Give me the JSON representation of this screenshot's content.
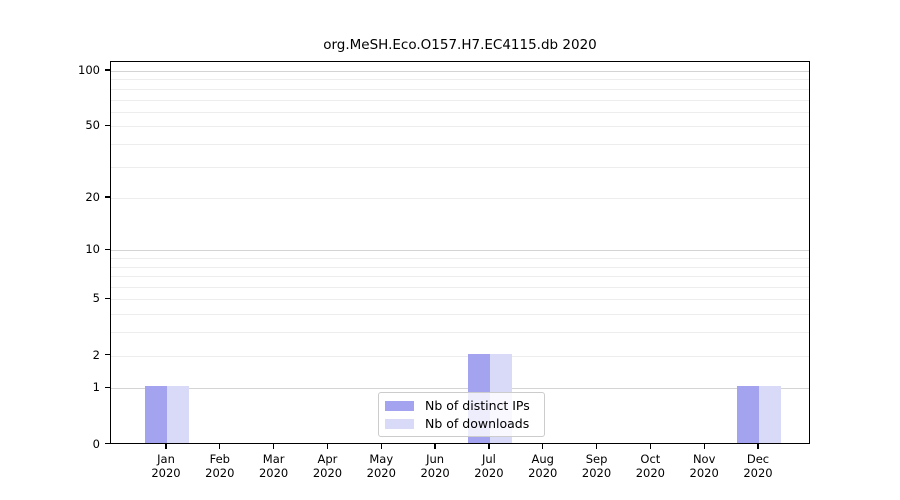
{
  "chart_data": {
    "type": "bar",
    "title": "org.MeSH.Eco.O157.H7.EC4115.db 2020",
    "categories": [
      "Jan",
      "Feb",
      "Mar",
      "Apr",
      "May",
      "Jun",
      "Jul",
      "Aug",
      "Sep",
      "Oct",
      "Nov",
      "Dec"
    ],
    "category_year": "2020",
    "series": [
      {
        "name": "Nb of distinct IPs",
        "color": "#a3a3f0",
        "values": [
          1,
          0,
          0,
          0,
          0,
          0,
          2,
          0,
          0,
          0,
          0,
          1
        ]
      },
      {
        "name": "Nb of downloads",
        "color": "#d9d9f8",
        "values": [
          1,
          0,
          0,
          0,
          0,
          0,
          2,
          0,
          0,
          0,
          0,
          1
        ]
      }
    ],
    "yscale": "log1p",
    "yticks": [
      0,
      1,
      2,
      5,
      10,
      20,
      50,
      100
    ],
    "ylim": [
      0,
      112
    ],
    "grid": "horizontal",
    "legend_position": "lower-center",
    "colors": {
      "major_grid": "#d4d4d4",
      "minor_grid": "#ededed",
      "spine": "#000000",
      "background": "#ffffff"
    }
  }
}
